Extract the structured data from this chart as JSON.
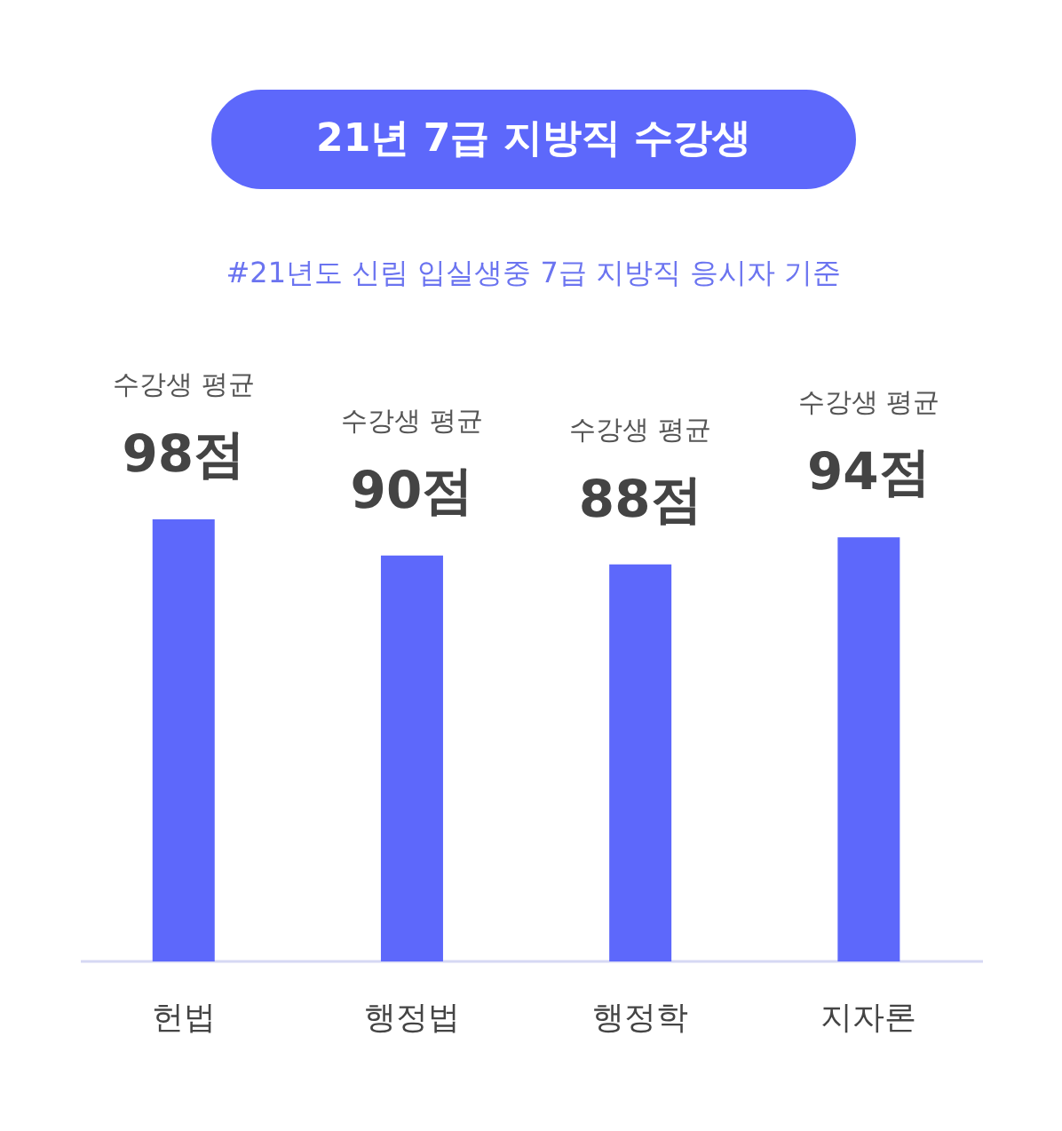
{
  "chart_data": {
    "type": "bar",
    "title": "21년 7급 지방직 수강생",
    "subtitle": "#21년도 신림 입실생중 7급 지방직 응시자 기준",
    "categories": [
      "헌법",
      "행정법",
      "행정학",
      "지자론"
    ],
    "values": [
      98,
      90,
      88,
      94
    ],
    "color": "#5d68fb",
    "value_labels": [
      "98점",
      "90점",
      "88점",
      "94점"
    ],
    "annotations": [
      "수강생 평균",
      "수강생 평균",
      "수강생 평균",
      "수강생 평균"
    ]
  }
}
